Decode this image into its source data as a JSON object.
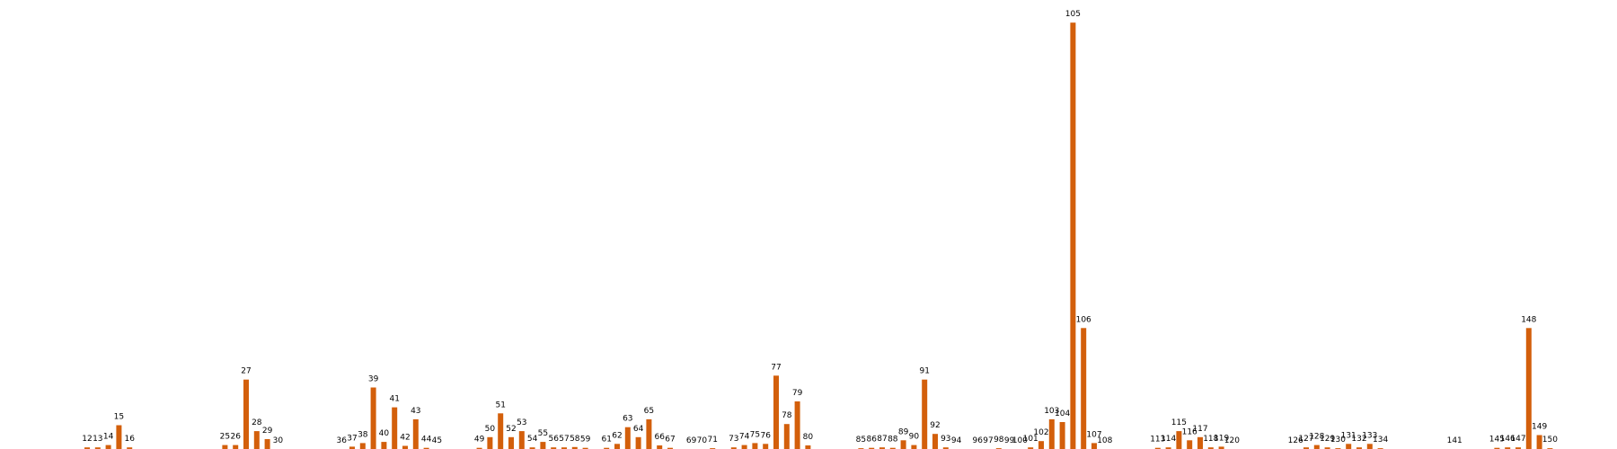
{
  "colors": {
    "bar": "#d35f0b",
    "background": "#ffffff",
    "label": "#000000"
  },
  "chart_data": {
    "type": "bar",
    "title": "",
    "xlabel": "",
    "ylabel": "",
    "ylim": [
      0,
      108
    ],
    "grid": false,
    "legend": "none",
    "bars": [
      {
        "label": "12",
        "value": 0.4
      },
      {
        "label": "13",
        "value": 0.4
      },
      {
        "label": "14",
        "value": 1
      },
      {
        "label": "15",
        "value": 6
      },
      {
        "label": "16",
        "value": 0.4
      },
      {
        "label": "25",
        "value": 1
      },
      {
        "label": "26",
        "value": 1
      },
      {
        "label": "27",
        "value": 17.5
      },
      {
        "label": "28",
        "value": 4.5
      },
      {
        "label": "29",
        "value": 2.5
      },
      {
        "label": "30",
        "value": 0
      },
      {
        "label": "36",
        "value": 0
      },
      {
        "label": "37",
        "value": 0.6
      },
      {
        "label": "38",
        "value": 1.5
      },
      {
        "label": "39",
        "value": 15.5
      },
      {
        "label": "40",
        "value": 1.8
      },
      {
        "label": "41",
        "value": 10.5
      },
      {
        "label": "42",
        "value": 0.8
      },
      {
        "label": "43",
        "value": 7.5
      },
      {
        "label": "44",
        "value": 0.3
      },
      {
        "label": "45",
        "value": 0
      },
      {
        "label": "49",
        "value": 0.3
      },
      {
        "label": "50",
        "value": 3
      },
      {
        "label": "51",
        "value": 9
      },
      {
        "label": "52",
        "value": 3
      },
      {
        "label": "53",
        "value": 4.5
      },
      {
        "label": "54",
        "value": 0.4
      },
      {
        "label": "55",
        "value": 1.8
      },
      {
        "label": "56",
        "value": 0.4
      },
      {
        "label": "57",
        "value": 0.4
      },
      {
        "label": "58",
        "value": 0.5
      },
      {
        "label": "59",
        "value": 0.3
      },
      {
        "label": "61",
        "value": 0.3
      },
      {
        "label": "62",
        "value": 1.3
      },
      {
        "label": "63",
        "value": 5.5
      },
      {
        "label": "64",
        "value": 3
      },
      {
        "label": "65",
        "value": 7.5
      },
      {
        "label": "66",
        "value": 0.9
      },
      {
        "label": "67",
        "value": 0.3
      },
      {
        "label": "69",
        "value": 0
      },
      {
        "label": "70",
        "value": 0
      },
      {
        "label": "71",
        "value": 0.2
      },
      {
        "label": "73",
        "value": 0.4
      },
      {
        "label": "74",
        "value": 1
      },
      {
        "label": "75",
        "value": 1.5
      },
      {
        "label": "76",
        "value": 1.3
      },
      {
        "label": "77",
        "value": 18.5
      },
      {
        "label": "78",
        "value": 6.3
      },
      {
        "label": "79",
        "value": 12
      },
      {
        "label": "80",
        "value": 0.9
      },
      {
        "label": "85",
        "value": 0.2
      },
      {
        "label": "86",
        "value": 0.3
      },
      {
        "label": "87",
        "value": 0.4
      },
      {
        "label": "88",
        "value": 0.3
      },
      {
        "label": "89",
        "value": 2.2
      },
      {
        "label": "90",
        "value": 1
      },
      {
        "label": "91",
        "value": 17.5
      },
      {
        "label": "92",
        "value": 3.8
      },
      {
        "label": "93",
        "value": 0.4
      },
      {
        "label": "94",
        "value": 0
      },
      {
        "label": "96",
        "value": 0
      },
      {
        "label": "97",
        "value": 0
      },
      {
        "label": "98",
        "value": 0.2
      },
      {
        "label": "99",
        "value": 0
      },
      {
        "label": "100",
        "value": 0
      },
      {
        "label": "101",
        "value": 0.4
      },
      {
        "label": "102",
        "value": 2
      },
      {
        "label": "103",
        "value": 7.5
      },
      {
        "label": "104",
        "value": 6.8
      },
      {
        "label": "105",
        "value": 107.5
      },
      {
        "label": "106",
        "value": 30.5
      },
      {
        "label": "107",
        "value": 1.5
      },
      {
        "label": "108",
        "value": 0
      },
      {
        "label": "113",
        "value": 0.3
      },
      {
        "label": "114",
        "value": 0.4
      },
      {
        "label": "115",
        "value": 4.5
      },
      {
        "label": "116",
        "value": 2.2
      },
      {
        "label": "117",
        "value": 3
      },
      {
        "label": "118",
        "value": 0.4
      },
      {
        "label": "119",
        "value": 0.6
      },
      {
        "label": "120",
        "value": 0
      },
      {
        "label": "126",
        "value": 0
      },
      {
        "label": "127",
        "value": 0.4
      },
      {
        "label": "128",
        "value": 1
      },
      {
        "label": "129",
        "value": 0.4
      },
      {
        "label": "130",
        "value": 0.2
      },
      {
        "label": "131",
        "value": 1.3
      },
      {
        "label": "132",
        "value": 0.4
      },
      {
        "label": "133",
        "value": 1.3
      },
      {
        "label": "134",
        "value": 0.2
      },
      {
        "label": "141",
        "value": 0
      },
      {
        "label": "145",
        "value": 0.3
      },
      {
        "label": "146",
        "value": 0.4
      },
      {
        "label": "147",
        "value": 0.4
      },
      {
        "label": "148",
        "value": 30.5
      },
      {
        "label": "149",
        "value": 3.5
      },
      {
        "label": "150",
        "value": 0.2
      }
    ]
  }
}
